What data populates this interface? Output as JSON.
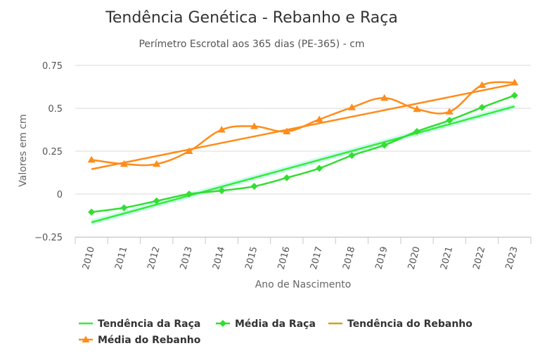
{
  "chart_data": {
    "type": "line",
    "title": "Tendência Genética - Rebanho e Raça",
    "subtitle": "Perímetro Escrotal aos 365 dias (PE-365) - cm",
    "xlabel": "Ano de Nascimento",
    "ylabel": "Valores em cm",
    "ylim": [
      -0.25,
      0.75
    ],
    "yticks": [
      -0.25,
      0,
      0.25,
      0.5,
      0.75
    ],
    "ytick_labels": [
      "−0.25",
      "0",
      "0.25",
      "0.5",
      "0.75"
    ],
    "categories": [
      "2010",
      "2011",
      "2012",
      "2013",
      "2014",
      "2015",
      "2016",
      "2017",
      "2018",
      "2019",
      "2020",
      "2021",
      "2022",
      "2023"
    ],
    "series": [
      {
        "name": "Tendência da Raça",
        "kind": "trend",
        "color": "#33ee33",
        "values": [
          -0.165,
          -0.113,
          -0.061,
          -0.009,
          0.043,
          0.095,
          0.147,
          0.199,
          0.251,
          0.303,
          0.355,
          0.407,
          0.459,
          0.511
        ]
      },
      {
        "name": "Média da Raça",
        "kind": "mean",
        "marker": "diamond",
        "color": "#33dd33",
        "values": [
          -0.105,
          -0.08,
          -0.04,
          0.0,
          0.02,
          0.045,
          0.095,
          0.15,
          0.225,
          0.285,
          0.365,
          0.43,
          0.505,
          0.575
        ]
      },
      {
        "name": "Tendência do Rebanho",
        "kind": "trend",
        "color": "#ff8c1a",
        "legend_color": "#d4a017",
        "values": [
          0.145,
          0.183,
          0.222,
          0.26,
          0.298,
          0.336,
          0.375,
          0.413,
          0.451,
          0.489,
          0.528,
          0.566,
          0.604,
          0.642
        ]
      },
      {
        "name": "Média do Rebanho",
        "kind": "mean",
        "marker": "triangle",
        "color": "#ff8c1a",
        "values": [
          0.2,
          0.175,
          0.175,
          0.25,
          0.375,
          0.395,
          0.365,
          0.435,
          0.505,
          0.56,
          0.495,
          0.48,
          0.635,
          0.65
        ]
      }
    ],
    "legend_position": "bottom-left"
  }
}
